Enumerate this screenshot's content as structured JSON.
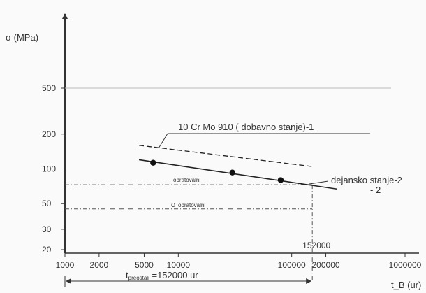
{
  "chart_data": {
    "type": "line",
    "title": "",
    "x_scale": "log",
    "y_scale": "log",
    "xlim": [
      1000,
      1000000
    ],
    "ylim": [
      20,
      500
    ],
    "xlabel": "t_B (ur)",
    "ylabel": "σ (MPa)",
    "x_ticks": [
      1000,
      2000,
      5000,
      10000,
      100000,
      200000,
      1000000
    ],
    "x_tick_labels": [
      "1000",
      "2000",
      "5000",
      "10000",
      "100000",
      "200000",
      "1000000"
    ],
    "y_ticks": [
      20,
      30,
      50,
      100,
      200,
      500
    ],
    "y_tick_labels": [
      "20",
      "30",
      "50",
      "100",
      "200",
      "500"
    ],
    "grid": false,
    "series": [
      {
        "name": "10 Cr Mo 910 ( dobavno stanje)-1",
        "style": "dashed",
        "x": [
          4500,
          150000
        ],
        "y": [
          160,
          105
        ]
      },
      {
        "name": "dejansko stanje-2",
        "name_line2": "- 2",
        "style": "solid",
        "x": [
          4500,
          250000
        ],
        "y": [
          120,
          67
        ]
      }
    ],
    "points": {
      "x": [
        6000,
        30000,
        80000
      ],
      "y": [
        113,
        93,
        80
      ]
    },
    "annotations": {
      "sigma_label": "σ",
      "obratovalni_label": "obratovalni",
      "sigma_obratovalni_y": 45,
      "level_line_y": 73,
      "t_value_label": "152000",
      "t_value": 152000,
      "t_prefix": "t",
      "t_subscript": "preostali",
      "t_suffix": " =152000  ur"
    }
  }
}
